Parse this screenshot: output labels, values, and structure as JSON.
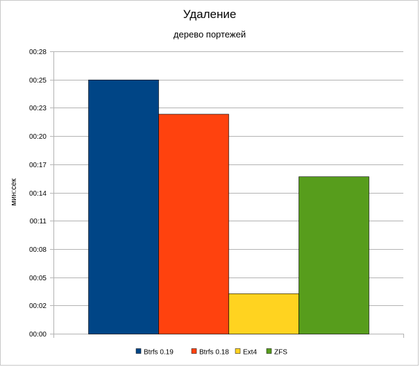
{
  "chart_data": {
    "type": "bar",
    "title": "Удаление",
    "subtitle": "дерево портежей",
    "ylabel": "мин:сек",
    "xlabel": "",
    "ylim": [
      0,
      28
    ],
    "y_ticks": [
      "00:00",
      "00:02",
      "00:05",
      "00:08",
      "00:11",
      "00:14",
      "00:17",
      "00:20",
      "00:23",
      "00:25",
      "00:28"
    ],
    "y_tick_values": [
      0,
      2.8,
      5.6,
      8.4,
      11.2,
      14,
      16.8,
      19.6,
      22.4,
      25.2,
      28
    ],
    "grid": true,
    "legend_position": "bottom",
    "series": [
      {
        "name": "Btrfs 0.19",
        "values": [
          25.2
        ],
        "color": "#004586"
      },
      {
        "name": "Btrfs 0.18",
        "values": [
          21.8
        ],
        "color": "#ff420e"
      },
      {
        "name": "Ext4",
        "values": [
          4.0
        ],
        "color": "#ffd320"
      },
      {
        "name": "ZFS",
        "values": [
          15.6
        ],
        "color": "#579d1c"
      }
    ]
  }
}
